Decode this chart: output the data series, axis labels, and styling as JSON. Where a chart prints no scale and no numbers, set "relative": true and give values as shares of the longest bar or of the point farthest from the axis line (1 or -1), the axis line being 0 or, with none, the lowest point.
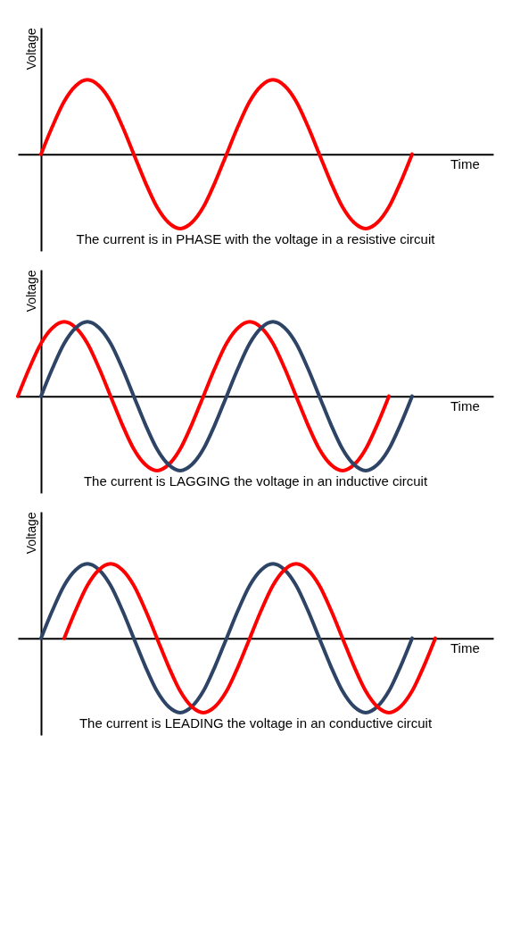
{
  "chart_data": [
    {
      "type": "line",
      "relative": true,
      "ylabel": "Voltage",
      "xlabel": "Time",
      "annotations": [
        "The current is in PHASE with the voltage in a resistive circuit"
      ],
      "categories": [
        null,
        null,
        null,
        null,
        null,
        null,
        null,
        null,
        null,
        null,
        null,
        null,
        null,
        null,
        null,
        null,
        null,
        null,
        null,
        null,
        null,
        null,
        null,
        null,
        null,
        null,
        null,
        null,
        null,
        null,
        null,
        null,
        null,
        null,
        null,
        null,
        null,
        null,
        null,
        null,
        null,
        null
      ],
      "series": [
        {
          "color": "#ff0000",
          "values": [
            null,
            null,
            0,
            0.38,
            0.71,
            0.92,
            1,
            0.92,
            0.71,
            0.38,
            0,
            -0.38,
            -0.71,
            -0.92,
            -1,
            -0.92,
            -0.71,
            -0.38,
            0,
            0.38,
            0.71,
            0.92,
            1,
            0.92,
            0.71,
            0.38,
            0,
            -0.38,
            -0.71,
            -0.92,
            -1,
            -0.92,
            -0.71,
            -0.38,
            0,
            null,
            null,
            null,
            null,
            null,
            null,
            null
          ]
        }
      ]
    },
    {
      "type": "line",
      "relative": true,
      "ylabel": "Voltage",
      "xlabel": "Time",
      "annotations": [
        "The current is LAGGING the voltage in an inductive circuit"
      ],
      "categories": [
        null,
        null,
        null,
        null,
        null,
        null,
        null,
        null,
        null,
        null,
        null,
        null,
        null,
        null,
        null,
        null,
        null,
        null,
        null,
        null,
        null,
        null,
        null,
        null,
        null,
        null,
        null,
        null,
        null,
        null,
        null,
        null,
        null,
        null,
        null,
        null,
        null,
        null,
        null,
        null,
        null,
        null
      ],
      "series": [
        {
          "color": "#ff0000",
          "values": [
            0,
            0.38,
            0.71,
            0.92,
            1,
            0.92,
            0.71,
            0.38,
            0,
            -0.38,
            -0.71,
            -0.92,
            -1,
            -0.92,
            -0.71,
            -0.38,
            0,
            0.38,
            0.71,
            0.92,
            1,
            0.92,
            0.71,
            0.38,
            0,
            -0.38,
            -0.71,
            -0.92,
            -1,
            -0.92,
            -0.71,
            -0.38,
            0,
            null,
            null,
            null,
            null,
            null,
            null,
            null,
            null,
            null
          ]
        },
        {
          "color": "#2e4466",
          "values": [
            null,
            null,
            0,
            0.38,
            0.71,
            0.92,
            1,
            0.92,
            0.71,
            0.38,
            0,
            -0.38,
            -0.71,
            -0.92,
            -1,
            -0.92,
            -0.71,
            -0.38,
            0,
            0.38,
            0.71,
            0.92,
            1,
            0.92,
            0.71,
            0.38,
            0,
            -0.38,
            -0.71,
            -0.92,
            -1,
            -0.92,
            -0.71,
            -0.38,
            0,
            null,
            null,
            null,
            null,
            null,
            null,
            null
          ]
        }
      ]
    },
    {
      "type": "line",
      "relative": true,
      "ylabel": "Voltage",
      "xlabel": "Time",
      "annotations": [
        "The current is LEADING the voltage in an conductive circuit"
      ],
      "categories": [
        null,
        null,
        null,
        null,
        null,
        null,
        null,
        null,
        null,
        null,
        null,
        null,
        null,
        null,
        null,
        null,
        null,
        null,
        null,
        null,
        null,
        null,
        null,
        null,
        null,
        null,
        null,
        null,
        null,
        null,
        null,
        null,
        null,
        null,
        null,
        null,
        null,
        null,
        null,
        null,
        null,
        null
      ],
      "series": [
        {
          "color": "#2e4466",
          "values": [
            null,
            null,
            0,
            0.38,
            0.71,
            0.92,
            1,
            0.92,
            0.71,
            0.38,
            0,
            -0.38,
            -0.71,
            -0.92,
            -1,
            -0.92,
            -0.71,
            -0.38,
            0,
            0.38,
            0.71,
            0.92,
            1,
            0.92,
            0.71,
            0.38,
            0,
            -0.38,
            -0.71,
            -0.92,
            -1,
            -0.92,
            -0.71,
            -0.38,
            0,
            null,
            null,
            null,
            null,
            null,
            null,
            null
          ]
        },
        {
          "color": "#ff0000",
          "values": [
            null,
            null,
            null,
            null,
            0,
            0.38,
            0.71,
            0.92,
            1,
            0.92,
            0.71,
            0.38,
            0,
            -0.38,
            -0.71,
            -0.92,
            -1,
            -0.92,
            -0.71,
            -0.38,
            0,
            0.38,
            0.71,
            0.92,
            1,
            0.92,
            0.71,
            0.38,
            0,
            -0.38,
            -0.71,
            -0.92,
            -1,
            -0.92,
            -0.71,
            -0.38,
            0,
            null,
            null,
            null,
            null,
            null
          ]
        }
      ]
    }
  ]
}
